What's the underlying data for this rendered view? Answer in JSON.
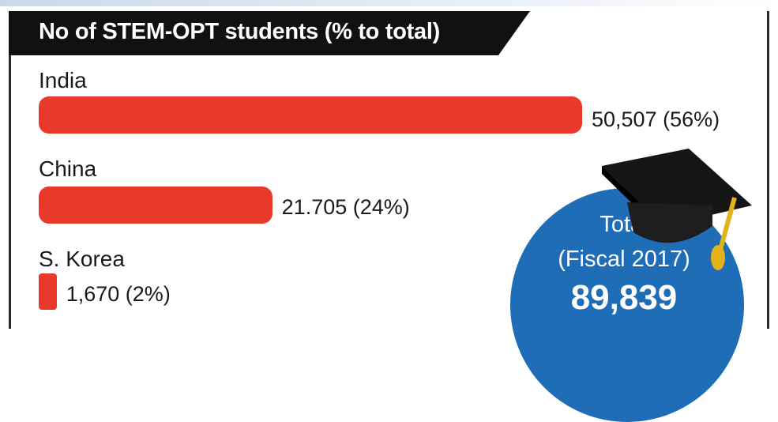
{
  "chart_data": {
    "type": "bar",
    "orientation": "horizontal",
    "title": "No of STEM-OPT students (% to total)",
    "categories": [
      "India",
      "China",
      "S. Korea"
    ],
    "values": [
      50507,
      21705,
      1670
    ],
    "percent": [
      56,
      24,
      2
    ],
    "value_labels": [
      "50,507 (56%)",
      "21.705 (24%)",
      "1,670 (2%)"
    ],
    "bar_color": "#e8392b"
  },
  "total": {
    "label": "Total",
    "period": "(Fiscal 2017)",
    "value": "89,839",
    "color": "#1f6db6"
  },
  "icons": {
    "cap": "graduation-cap-icon"
  }
}
